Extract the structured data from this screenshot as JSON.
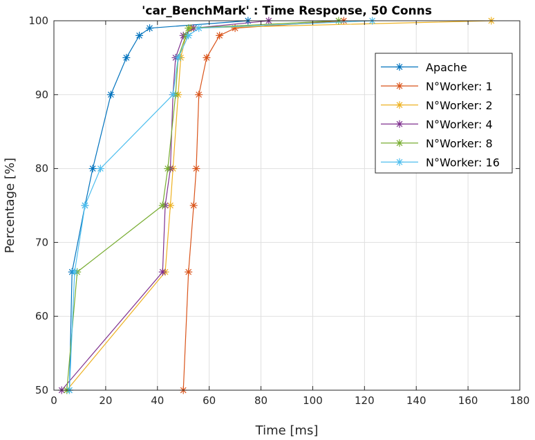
{
  "chart_data": {
    "type": "line",
    "title": "'car_BenchMark' : Time Response, 50 Conns",
    "xlabel": "Time [ms]",
    "ylabel": "Percentage [%]",
    "xlim": [
      0,
      180
    ],
    "ylim": [
      50,
      100
    ],
    "xticks": [
      0,
      20,
      40,
      60,
      80,
      100,
      120,
      140,
      160,
      180
    ],
    "yticks": [
      50,
      60,
      70,
      80,
      90,
      100
    ],
    "grid": true,
    "legend_position": "top-right",
    "marker": "asterisk",
    "series": [
      {
        "name": "Apache",
        "color": "#0072BD",
        "points": [
          [
            6,
            50
          ],
          [
            7,
            66
          ],
          [
            12,
            75
          ],
          [
            15,
            80
          ],
          [
            22,
            90
          ],
          [
            28,
            95
          ],
          [
            33,
            98
          ],
          [
            37,
            99
          ],
          [
            75,
            100
          ]
        ]
      },
      {
        "name": "N°Worker: 1",
        "color": "#D95319",
        "points": [
          [
            50,
            50
          ],
          [
            52,
            66
          ],
          [
            54,
            75
          ],
          [
            55,
            80
          ],
          [
            56,
            90
          ],
          [
            59,
            95
          ],
          [
            64,
            98
          ],
          [
            70,
            99
          ],
          [
            112,
            100
          ]
        ]
      },
      {
        "name": "N°Worker: 2",
        "color": "#EDB120",
        "points": [
          [
            5,
            50
          ],
          [
            43,
            66
          ],
          [
            45,
            75
          ],
          [
            46,
            80
          ],
          [
            48,
            90
          ],
          [
            49,
            95
          ],
          [
            51,
            98
          ],
          [
            53,
            99
          ],
          [
            169,
            100
          ]
        ]
      },
      {
        "name": "N°Worker: 4",
        "color": "#7E2F8E",
        "points": [
          [
            3,
            50
          ],
          [
            42,
            66
          ],
          [
            43,
            75
          ],
          [
            45,
            80
          ],
          [
            46,
            90
          ],
          [
            47,
            95
          ],
          [
            50,
            98
          ],
          [
            54,
            99
          ],
          [
            83,
            100
          ]
        ]
      },
      {
        "name": "N°Worker: 8",
        "color": "#77AC30",
        "points": [
          [
            5,
            50
          ],
          [
            9,
            66
          ],
          [
            42,
            75
          ],
          [
            44,
            80
          ],
          [
            47,
            90
          ],
          [
            48,
            95
          ],
          [
            51,
            98
          ],
          [
            52,
            99
          ],
          [
            110,
            100
          ]
        ]
      },
      {
        "name": "N°Worker: 16",
        "color": "#4DBEEE",
        "points": [
          [
            6,
            50
          ],
          [
            8,
            66
          ],
          [
            12,
            75
          ],
          [
            18,
            80
          ],
          [
            46,
            90
          ],
          [
            48,
            95
          ],
          [
            52,
            98
          ],
          [
            56,
            99
          ],
          [
            123,
            100
          ]
        ]
      }
    ]
  }
}
